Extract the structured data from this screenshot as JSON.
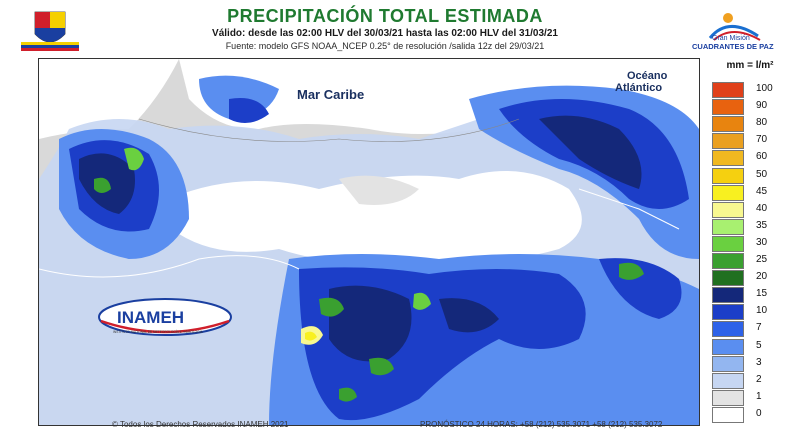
{
  "header": {
    "title": "PRECIPITACIÓN TOTAL ESTIMADA",
    "validity": "Válido: desde las 02:00 HLV del 30/03/21 hasta las 02:00 HLV del 31/03/21",
    "source": "Fuente: modelo GFS NOAA_NCEP 0.25° de resolución /salida 12z del 29/03/21"
  },
  "logos": {
    "left_text": "",
    "right_line1": "Gran Misión",
    "right_line2": "CUADRANTES DE PAZ",
    "inameh_name": "INAMEH",
    "inameh_sub": "INSTITUTO NACIONAL DE METEOROLOGÍA E HIDROLOGÍA"
  },
  "map": {
    "sea_label": "Mar Caribe",
    "ocean_label_1": "Océano",
    "ocean_label_2": "Atlántico",
    "colors": {
      "land": "#d9d9d9",
      "border": "#ffffff"
    }
  },
  "legend": {
    "unit": "mm = l/m²",
    "items": [
      {
        "label": "100",
        "color": "#e0401a"
      },
      {
        "label": "90",
        "color": "#e8620f"
      },
      {
        "label": "80",
        "color": "#e8840f"
      },
      {
        "label": "70",
        "color": "#eaa020"
      },
      {
        "label": "60",
        "color": "#f0b820"
      },
      {
        "label": "50",
        "color": "#f5d010"
      },
      {
        "label": "45",
        "color": "#f8f020"
      },
      {
        "label": "40",
        "color": "#f8f890"
      },
      {
        "label": "35",
        "color": "#a8f070"
      },
      {
        "label": "30",
        "color": "#6ad040"
      },
      {
        "label": "25",
        "color": "#3aa030"
      },
      {
        "label": "20",
        "color": "#207020"
      },
      {
        "label": "15",
        "color": "#14287a"
      },
      {
        "label": "10",
        "color": "#1c3ec8"
      },
      {
        "label": "7",
        "color": "#2e62e8"
      },
      {
        "label": "5",
        "color": "#5a8ef0"
      },
      {
        "label": "3",
        "color": "#93b6f0"
      },
      {
        "label": "2",
        "color": "#c6d6f2"
      },
      {
        "label": "1",
        "color": "#e3e3e3"
      },
      {
        "label": "0",
        "color": "#ffffff"
      }
    ]
  },
  "footer": {
    "copyright": "© Todos los Derechos Reservados INAMEH 2021",
    "forecast": "PRONÓSTICO 24 HORAS: +58 (212) 535.3071 +58 (212) 535.3072"
  }
}
